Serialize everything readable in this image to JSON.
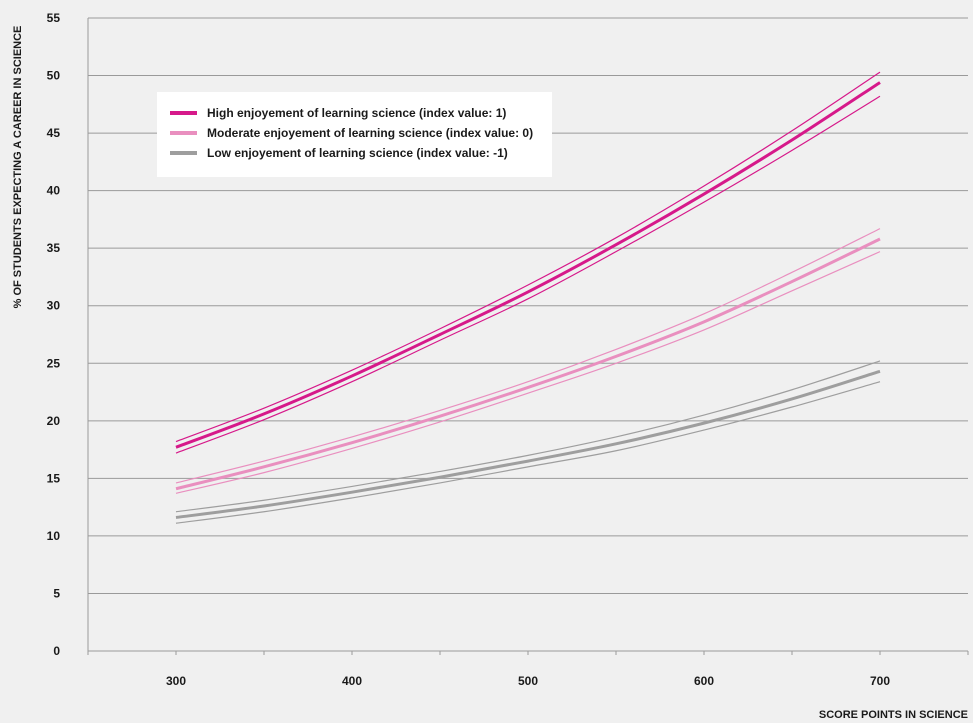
{
  "chart_data": {
    "type": "line",
    "xlabel": "SCORE POINTS IN SCIENCE",
    "ylabel": "% OF STUDENTS EXPECTING A CAREER IN SCIENCE",
    "xlim": [
      250,
      750
    ],
    "ylim": [
      0,
      55
    ],
    "x_ticks": [
      300,
      400,
      500,
      600,
      700
    ],
    "y_ticks": [
      0,
      5,
      10,
      15,
      20,
      25,
      30,
      35,
      40,
      45,
      50,
      55
    ],
    "grid": "horizontal",
    "legend_position": "top-left",
    "x": [
      300,
      350,
      400,
      450,
      500,
      550,
      600,
      650,
      700
    ],
    "series": [
      {
        "name": "High enjoyement of learning science (index value: 1)",
        "color": "#d6198a",
        "values": [
          17.7,
          20.6,
          23.9,
          27.5,
          31.2,
          35.3,
          39.7,
          44.4,
          49.4
        ],
        "upper": [
          18.2,
          21.1,
          24.4,
          28.0,
          31.8,
          35.9,
          40.4,
          45.2,
          50.3
        ],
        "lower": [
          17.2,
          20.1,
          23.4,
          27.0,
          30.6,
          34.7,
          39.0,
          43.5,
          48.2
        ]
      },
      {
        "name": "Moderate enjoyement of learning science (index value: 0)",
        "color": "#e98fbf",
        "values": [
          14.1,
          16.0,
          18.1,
          20.4,
          22.9,
          25.6,
          28.6,
          32.1,
          35.8
        ],
        "upper": [
          14.6,
          16.5,
          18.6,
          20.9,
          23.4,
          26.2,
          29.3,
          32.9,
          36.7
        ],
        "lower": [
          13.7,
          15.5,
          17.6,
          19.9,
          22.4,
          25.0,
          27.9,
          31.3,
          34.7
        ]
      },
      {
        "name": "Low enjoyement of learning science (index value: -1)",
        "color": "#9e9e9e",
        "values": [
          11.6,
          12.6,
          13.8,
          15.1,
          16.5,
          18.0,
          19.8,
          21.9,
          24.3
        ],
        "upper": [
          12.1,
          13.1,
          14.3,
          15.6,
          17.0,
          18.6,
          20.5,
          22.7,
          25.2
        ],
        "lower": [
          11.1,
          12.1,
          13.3,
          14.6,
          16.0,
          17.4,
          19.2,
          21.2,
          23.4
        ]
      }
    ]
  }
}
